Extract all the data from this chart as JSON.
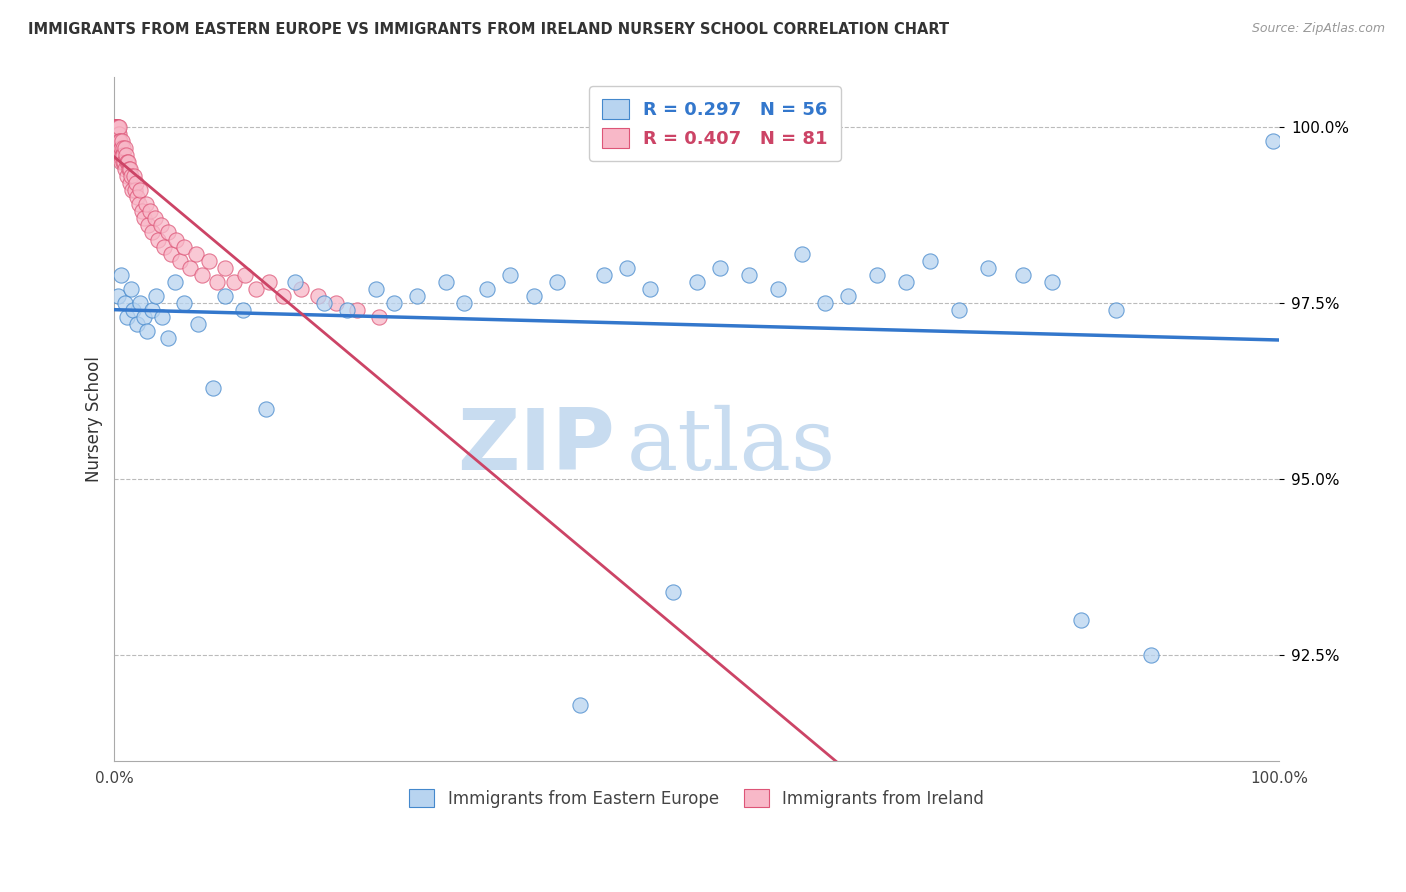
{
  "title": "IMMIGRANTS FROM EASTERN EUROPE VS IMMIGRANTS FROM IRELAND NURSERY SCHOOL CORRELATION CHART",
  "source": "Source: ZipAtlas.com",
  "ylabel": "Nursery School",
  "legend_blue_label": "Immigrants from Eastern Europe",
  "legend_pink_label": "Immigrants from Ireland",
  "R_blue": 0.297,
  "N_blue": 56,
  "R_pink": 0.407,
  "N_pink": 81,
  "blue_fill": "#B8D4F0",
  "blue_edge": "#4488CC",
  "pink_fill": "#F8B8C8",
  "pink_edge": "#DD5577",
  "trendline_blue": "#3377CC",
  "trendline_pink": "#CC4466",
  "blue_x": [
    0.3,
    0.6,
    0.9,
    1.1,
    1.4,
    1.6,
    1.9,
    2.2,
    2.5,
    2.8,
    3.2,
    3.6,
    4.1,
    4.6,
    5.2,
    6.0,
    7.2,
    8.5,
    9.5,
    11.0,
    13.0,
    15.5,
    18.0,
    20.0,
    22.5,
    24.0,
    26.0,
    28.5,
    30.0,
    32.0,
    34.0,
    36.0,
    38.0,
    40.0,
    42.0,
    44.0,
    46.0,
    48.0,
    50.0,
    52.0,
    54.5,
    57.0,
    59.0,
    61.0,
    63.0,
    65.5,
    68.0,
    70.0,
    72.5,
    75.0,
    78.0,
    80.5,
    83.0,
    86.0,
    89.0,
    99.5
  ],
  "blue_y": [
    97.6,
    97.9,
    97.5,
    97.3,
    97.7,
    97.4,
    97.2,
    97.5,
    97.3,
    97.1,
    97.4,
    97.6,
    97.3,
    97.0,
    97.8,
    97.5,
    97.2,
    96.3,
    97.6,
    97.4,
    96.0,
    97.8,
    97.5,
    97.4,
    97.7,
    97.5,
    97.6,
    97.8,
    97.5,
    97.7,
    97.9,
    97.6,
    97.8,
    91.8,
    97.9,
    98.0,
    97.7,
    93.4,
    97.8,
    98.0,
    97.9,
    97.7,
    98.2,
    97.5,
    97.6,
    97.9,
    97.8,
    98.1,
    97.4,
    98.0,
    97.9,
    97.8,
    93.0,
    97.4,
    92.5,
    99.8
  ],
  "pink_x": [
    0.01,
    0.03,
    0.05,
    0.07,
    0.09,
    0.11,
    0.13,
    0.15,
    0.17,
    0.19,
    0.21,
    0.23,
    0.25,
    0.27,
    0.29,
    0.31,
    0.33,
    0.35,
    0.37,
    0.39,
    0.41,
    0.43,
    0.46,
    0.49,
    0.52,
    0.55,
    0.58,
    0.62,
    0.66,
    0.7,
    0.74,
    0.78,
    0.83,
    0.88,
    0.93,
    0.98,
    1.04,
    1.1,
    1.16,
    1.23,
    1.3,
    1.38,
    1.46,
    1.55,
    1.64,
    1.74,
    1.84,
    1.95,
    2.07,
    2.2,
    2.34,
    2.5,
    2.67,
    2.85,
    3.05,
    3.26,
    3.49,
    3.73,
    3.99,
    4.28,
    4.58,
    4.9,
    5.25,
    5.62,
    6.0,
    6.5,
    7.0,
    7.5,
    8.1,
    8.8,
    9.5,
    10.3,
    11.2,
    12.2,
    13.3,
    14.5,
    16.0,
    17.5,
    19.0,
    20.8,
    22.7
  ],
  "pink_y": [
    100.0,
    100.0,
    99.9,
    100.0,
    100.0,
    99.8,
    100.0,
    99.9,
    100.0,
    99.8,
    100.0,
    99.7,
    99.9,
    100.0,
    99.8,
    99.6,
    99.9,
    100.0,
    99.7,
    99.9,
    100.0,
    99.8,
    99.7,
    99.6,
    99.8,
    99.5,
    99.7,
    99.6,
    99.8,
    99.5,
    99.7,
    99.6,
    99.5,
    99.7,
    99.4,
    99.6,
    99.5,
    99.3,
    99.5,
    99.4,
    99.2,
    99.4,
    99.3,
    99.1,
    99.3,
    99.1,
    99.2,
    99.0,
    98.9,
    99.1,
    98.8,
    98.7,
    98.9,
    98.6,
    98.8,
    98.5,
    98.7,
    98.4,
    98.6,
    98.3,
    98.5,
    98.2,
    98.4,
    98.1,
    98.3,
    98.0,
    98.2,
    97.9,
    98.1,
    97.8,
    98.0,
    97.8,
    97.9,
    97.7,
    97.8,
    97.6,
    97.7,
    97.6,
    97.5,
    97.4,
    97.3
  ],
  "xlim": [
    0,
    100
  ],
  "ylim": [
    91.0,
    100.7
  ],
  "yticks": [
    92.5,
    95.0,
    97.5,
    100.0
  ],
  "background_color": "#FFFFFF",
  "grid_color": "#BBBBBB",
  "watermark_zip": "ZIP",
  "watermark_atlas": "atlas",
  "watermark_color_zip": "#C8DCF0",
  "watermark_color_atlas": "#C8DCF0"
}
